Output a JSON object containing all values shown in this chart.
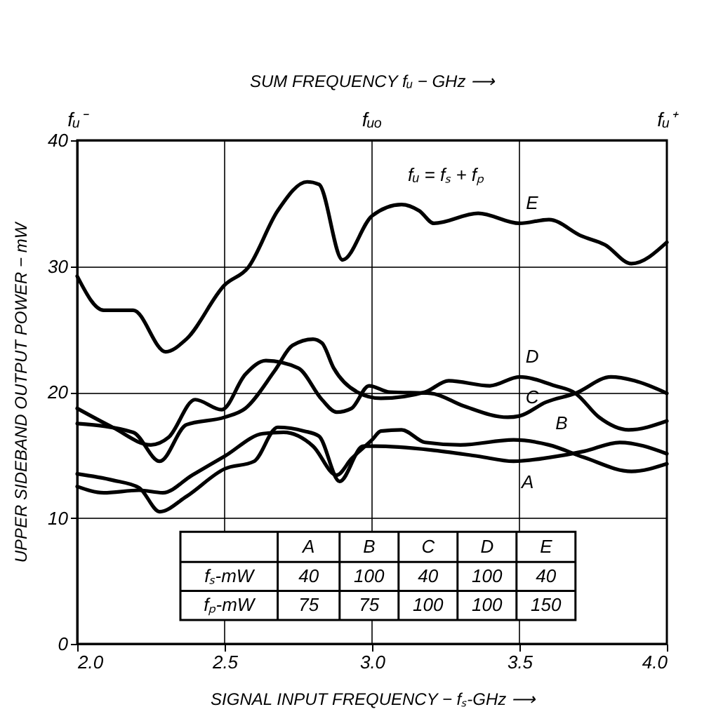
{
  "chart_data": {
    "type": "line",
    "xlabel": "SIGNAL INPUT FREQUENCY − fₛ-GHz ⟶",
    "ylabel": "UPPER SIDEBAND OUTPUT POWER − mW",
    "xlim": [
      2.0,
      4.0
    ],
    "xticks": [
      {
        "value": 2,
        "label": "2.0"
      },
      2.5,
      {
        "value": 3,
        "label": "3.0"
      },
      3.5,
      {
        "value": 4,
        "label": "4.0"
      }
    ],
    "ylim": [
      0,
      40
    ],
    "yticks": [
      0,
      10,
      20,
      30,
      40
    ],
    "grid": true,
    "legend": false,
    "line_style": "solid",
    "marker": "none",
    "annotations": [
      "fᵤ = fₛ + fₚ",
      "SUM FREQUENCY   fᵤ − GHz ⟶",
      "fᵤ⁻",
      "fᵤₒ",
      "fᵤ⁺",
      "A",
      "B",
      "C",
      "D",
      "E",
      "fₛ-mW",
      "40",
      "100",
      "40",
      "100",
      "40",
      "fₚ-mW",
      "75",
      "75",
      "100",
      "100",
      "150"
    ],
    "series": [
      {
        "name": "A",
        "color": "#000000",
        "x": [
          2.0,
          2.12,
          2.21,
          2.28,
          2.37,
          2.5,
          2.6,
          2.68,
          2.77,
          2.82,
          2.89,
          2.97,
          3.01,
          3.2,
          3.36,
          3.48,
          3.6,
          3.72,
          3.84,
          4.0
        ],
        "values": [
          13.5,
          13.0,
          12.4,
          10.5,
          11.7,
          13.9,
          14.5,
          17.2,
          16.9,
          16.5,
          12.9,
          15.7,
          15.7,
          15.4,
          14.9,
          14.5,
          14.8,
          15.3,
          16.0,
          15.1
        ]
      },
      {
        "name": "B",
        "color": "#000000",
        "x": [
          2.0,
          2.09,
          2.21,
          2.29,
          2.39,
          2.5,
          2.63,
          2.7,
          2.8,
          2.88,
          2.93,
          3.0,
          3.03,
          3.1,
          3.18,
          3.3,
          3.48,
          3.6,
          3.72,
          3.88,
          4.0
        ],
        "values": [
          12.5,
          12.0,
          12.2,
          12.0,
          13.4,
          14.9,
          16.7,
          16.8,
          15.7,
          13.4,
          14.7,
          16.2,
          16.9,
          17.0,
          16.0,
          15.8,
          16.2,
          15.8,
          14.8,
          13.7,
          14.3
        ]
      },
      {
        "name": "C",
        "color": "#000000",
        "x": [
          2.0,
          2.12,
          2.25,
          2.31,
          2.4,
          2.49,
          2.57,
          2.64,
          2.75,
          2.83,
          2.88,
          2.93,
          2.99,
          3.06,
          3.2,
          3.31,
          3.46,
          3.5,
          3.59,
          3.69,
          3.81,
          3.89,
          4.0
        ],
        "values": [
          18.7,
          17.2,
          15.8,
          16.4,
          19.4,
          18.6,
          21.4,
          22.5,
          21.9,
          19.4,
          18.4,
          18.7,
          20.5,
          20.0,
          19.9,
          18.9,
          18.0,
          18.1,
          19.2,
          19.9,
          21.2,
          20.9,
          19.9
        ]
      },
      {
        "name": "D",
        "color": "#000000",
        "x": [
          2.0,
          2.19,
          2.28,
          2.37,
          2.5,
          2.57,
          2.67,
          2.73,
          2.8,
          2.83,
          2.87,
          2.95,
          3.03,
          3.18,
          3.26,
          3.4,
          3.5,
          3.62,
          3.69,
          3.77,
          3.87,
          4.0
        ],
        "values": [
          17.5,
          16.8,
          14.5,
          17.4,
          18.0,
          18.7,
          21.7,
          23.7,
          24.2,
          23.9,
          21.9,
          20.0,
          19.5,
          20.0,
          20.9,
          20.5,
          21.2,
          20.5,
          19.9,
          18.0,
          17.0,
          17.7
        ]
      },
      {
        "name": "E",
        "color": "#000000",
        "x": [
          2.0,
          2.09,
          2.19,
          2.3,
          2.37,
          2.5,
          2.58,
          2.68,
          2.78,
          2.82,
          2.9,
          3.0,
          3.1,
          3.16,
          3.21,
          3.36,
          3.5,
          3.6,
          3.71,
          3.79,
          3.88,
          4.0
        ],
        "values": [
          29.2,
          26.5,
          26.5,
          23.2,
          24.2,
          28.5,
          29.9,
          34.4,
          36.7,
          36.5,
          30.5,
          34.0,
          34.9,
          34.4,
          33.4,
          34.2,
          33.4,
          33.7,
          32.4,
          31.7,
          30.2,
          31.9
        ]
      }
    ]
  }
}
